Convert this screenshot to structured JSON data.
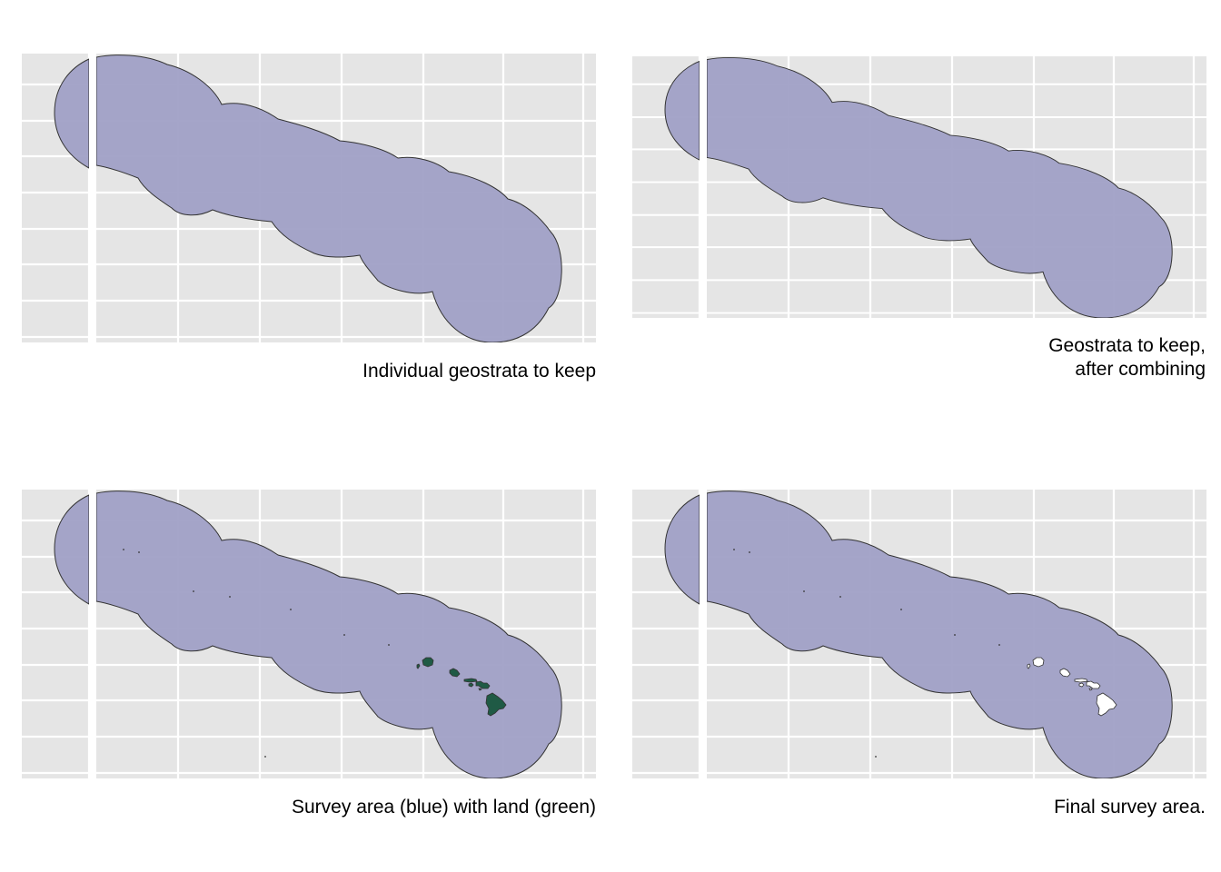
{
  "colors": {
    "panel_background": "#e5e5e5",
    "grid_line": "#ffffff",
    "survey_fill": "#a0a0c6",
    "survey_outline": "#333333",
    "land_green": "#1f5a45",
    "land_white": "#ffffff",
    "land_outline": "#333333"
  },
  "panels": [
    {
      "id": "individual",
      "caption": [
        "Individual geostrata to keep"
      ],
      "show_split_gap": true,
      "show_land": false
    },
    {
      "id": "combined",
      "caption": [
        "Geostrata to keep,",
        "after combining"
      ],
      "show_split_gap": true,
      "show_land": false
    },
    {
      "id": "with-land",
      "caption": [
        "Survey area (blue) with land (green)"
      ],
      "show_split_gap": true,
      "show_land": true,
      "land_color_key": "land_green"
    },
    {
      "id": "final",
      "caption": [
        "Final survey area."
      ],
      "show_split_gap": true,
      "show_land": true,
      "land_color_key": "land_white"
    }
  ]
}
